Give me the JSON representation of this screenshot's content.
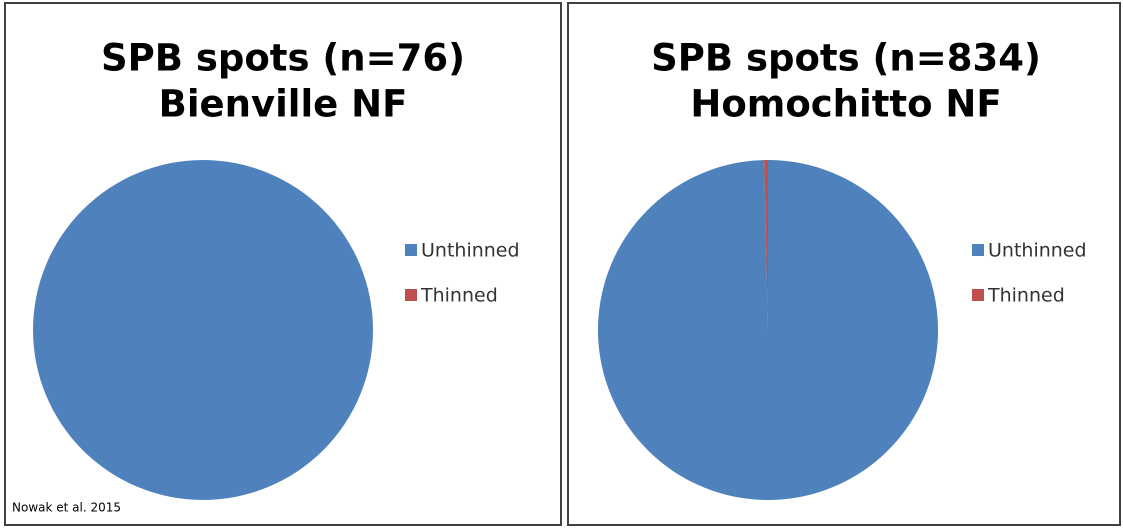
{
  "chart_data": [
    {
      "type": "pie",
      "title": "SPB spots (n=76)",
      "subtitle": "Bienville NF",
      "categories": [
        "Unthinned",
        "Thinned"
      ],
      "values": [
        76,
        0
      ],
      "colors": [
        "#4f81bd",
        "#c0504d"
      ],
      "legend": "right",
      "annotation": "Nowak et al. 2015"
    },
    {
      "type": "pie",
      "title": "SPB spots (n=834)",
      "subtitle": "Homochitto NF",
      "categories": [
        "Unthinned",
        "Thinned"
      ],
      "values": [
        831,
        3
      ],
      "colors": [
        "#4f81bd",
        "#c0504d"
      ],
      "legend": "right"
    }
  ]
}
